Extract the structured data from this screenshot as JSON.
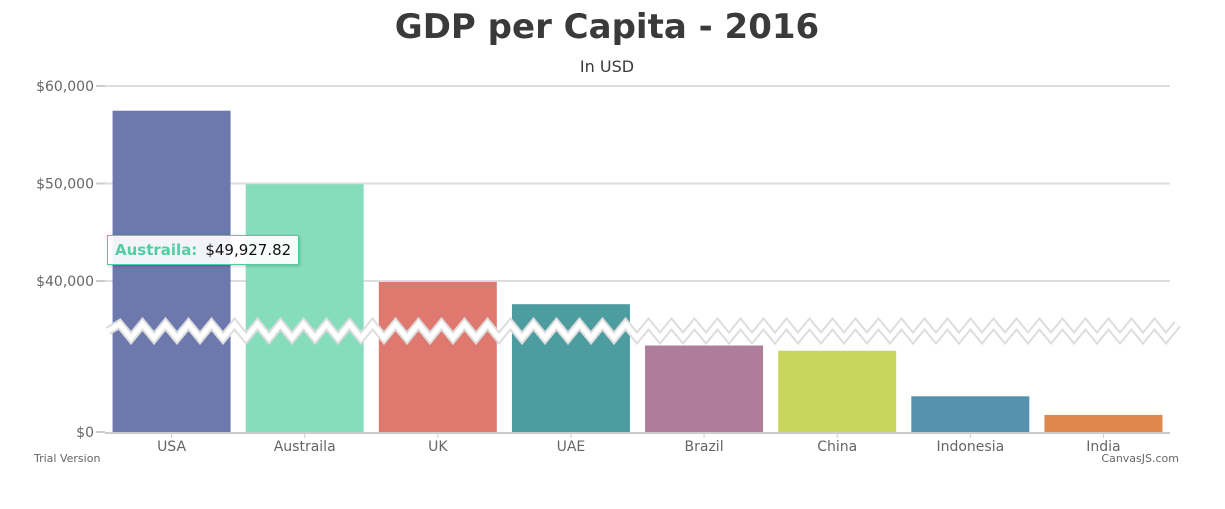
{
  "chart_data": {
    "type": "bar",
    "title": "GDP per Capita - 2016",
    "subtitle": "In USD",
    "xlabel": "",
    "ylabel": "",
    "categories": [
      "USA",
      "Austraila",
      "UK",
      "UAE",
      "Brazil",
      "China",
      "Indonesia",
      "India"
    ],
    "values": [
      57466,
      49927.82,
      39899,
      37622,
      8649,
      8123,
      3570,
      1709
    ],
    "colors": [
      "#6D78AD",
      "#86DDBD",
      "#DF7970",
      "#4C9CA0",
      "#AE7D99",
      "#C9D45C",
      "#5592AD",
      "#DF874D"
    ],
    "ylim": [
      0,
      60000
    ],
    "scale_break": [
      10000,
      35000
    ],
    "y_ticks": [
      {
        "value": 0,
        "label": "$0"
      },
      {
        "value": 40000,
        "label": "$40,000"
      },
      {
        "value": 50000,
        "label": "$50,000"
      },
      {
        "value": 60000,
        "label": "$60,000"
      }
    ],
    "grid": true,
    "tooltip": {
      "name": "Austraila:",
      "value": "$49,927.82",
      "color": "#51CDA0"
    }
  },
  "credits": {
    "left": "Trial Version",
    "right": "CanvasJS.com"
  }
}
